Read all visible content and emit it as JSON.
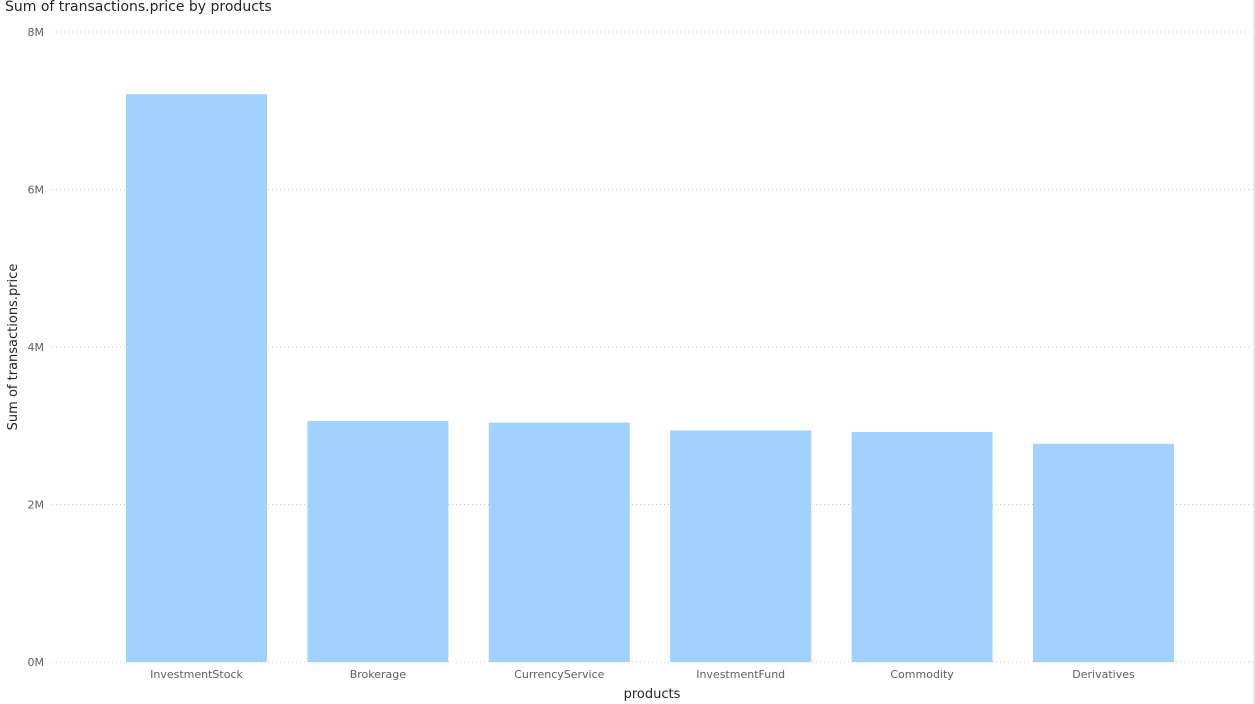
{
  "chart_data": {
    "type": "bar",
    "title": "Sum of transactions.price by products",
    "xlabel": "products",
    "ylabel": "Sum of transactions.price",
    "categories": [
      "InvestmentStock",
      "Brokerage",
      "CurrencyService",
      "InvestmentFund",
      "Commodity",
      "Derivatives"
    ],
    "values": [
      7210000,
      3060000,
      3040000,
      2940000,
      2920000,
      2770000
    ],
    "ylim": [
      0,
      8000000
    ],
    "yticks": [
      0,
      2000000,
      4000000,
      6000000,
      8000000
    ],
    "ytick_labels": [
      "0M",
      "2M",
      "4M",
      "6M",
      "8M"
    ],
    "grid": true,
    "legend": "none",
    "bar_color": "#a0d1ff"
  }
}
